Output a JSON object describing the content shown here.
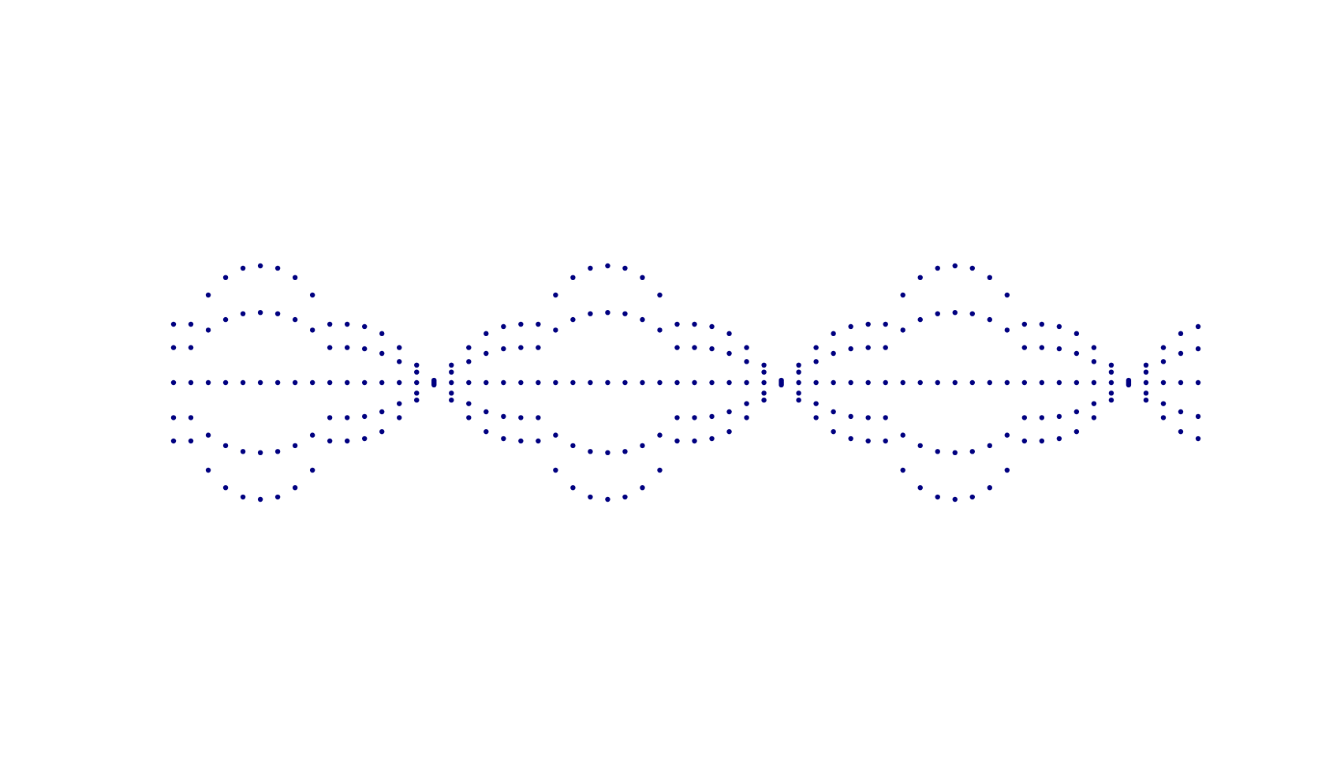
{
  "chart_data": {
    "type": "scatter",
    "x": [
      0.25,
      0.3,
      0.35,
      0.4,
      0.45,
      0.5,
      0.55,
      0.6,
      0.65,
      0.7,
      0.75,
      0.8,
      0.85,
      0.9,
      0.95,
      1,
      1.05,
      1.1,
      1.15,
      1.2,
      1.25,
      1.3,
      1.35,
      1.4,
      1.45,
      1.5,
      1.55,
      1.6,
      1.65,
      1.7,
      1.75,
      1.8,
      1.85,
      1.9,
      1.95,
      2,
      2.05,
      2.1,
      2.15,
      2.2,
      2.25,
      2.3,
      2.35,
      2.4,
      2.45,
      2.5,
      2.55,
      2.6,
      2.65,
      2.7,
      2.75,
      2.8,
      2.85,
      2.9,
      2.95,
      3,
      3.05,
      3.1,
      3.15,
      3.2
    ],
    "series": [
      {
        "color": "#000080",
        "values": [
          0.5,
          0.5,
          0.75,
          0.9,
          0.98,
          1,
          0.98,
          0.9,
          0.75,
          0.5,
          0.5,
          0.48,
          0.42,
          0.3,
          0.15,
          0.02,
          0.15,
          0.3,
          0.42,
          0.48,
          0.5,
          0.5,
          0.75,
          0.9,
          0.98,
          1,
          0.98,
          0.9,
          0.75,
          0.5,
          0.5,
          0.48,
          0.42,
          0.3,
          0.15,
          0.02,
          0.15,
          0.3,
          0.42,
          0.48,
          0.5,
          0.5,
          0.75,
          0.9,
          0.98,
          1,
          0.98,
          0.9,
          0.75,
          0.5,
          0.5,
          0.48,
          0.42,
          0.3,
          0.15,
          0.02,
          0.15,
          0.3,
          0.42,
          0.48
        ]
      },
      {
        "color": "#000080",
        "values": [
          0.3,
          0.3,
          0.45,
          0.54,
          0.59,
          0.6,
          0.59,
          0.54,
          0.45,
          0.3,
          0.3,
          0.29,
          0.25,
          0.18,
          0.09,
          0.01,
          0.09,
          0.18,
          0.25,
          0.29,
          0.3,
          0.3,
          0.45,
          0.54,
          0.59,
          0.6,
          0.59,
          0.54,
          0.45,
          0.3,
          0.3,
          0.29,
          0.25,
          0.18,
          0.09,
          0.01,
          0.09,
          0.18,
          0.25,
          0.29,
          0.3,
          0.3,
          0.45,
          0.54,
          0.59,
          0.6,
          0.59,
          0.54,
          0.45,
          0.3,
          0.3,
          0.29,
          0.25,
          0.18,
          0.09,
          0.01,
          0.09,
          0.18,
          0.25,
          0.29
        ]
      },
      {
        "color": "#000080",
        "values": [
          0,
          0,
          0,
          0,
          0,
          0,
          0,
          0,
          0,
          0,
          0,
          0,
          0,
          0,
          0,
          0,
          0,
          0,
          0,
          0,
          0,
          0,
          0,
          0,
          0,
          0,
          0,
          0,
          0,
          0,
          0,
          0,
          0,
          0,
          0,
          0,
          0,
          0,
          0,
          0,
          0,
          0,
          0,
          0,
          0,
          0,
          0,
          0,
          0,
          0,
          0,
          0,
          0,
          0,
          0,
          0,
          0,
          0,
          0,
          0
        ]
      },
      {
        "color": "#000080",
        "values": [
          -0.3,
          -0.3,
          -0.45,
          -0.54,
          -0.59,
          -0.6,
          -0.59,
          -0.54,
          -0.45,
          -0.3,
          -0.3,
          -0.29,
          -0.25,
          -0.18,
          -0.09,
          -0.01,
          -0.09,
          -0.18,
          -0.25,
          -0.29,
          -0.3,
          -0.3,
          -0.45,
          -0.54,
          -0.59,
          -0.6,
          -0.59,
          -0.54,
          -0.45,
          -0.3,
          -0.3,
          -0.29,
          -0.25,
          -0.18,
          -0.09,
          -0.01,
          -0.09,
          -0.18,
          -0.25,
          -0.29,
          -0.3,
          -0.3,
          -0.45,
          -0.54,
          -0.59,
          -0.6,
          -0.59,
          -0.54,
          -0.45,
          -0.3,
          -0.3,
          -0.29,
          -0.25,
          -0.18,
          -0.09,
          -0.01,
          -0.09,
          -0.18,
          -0.25,
          -0.29
        ]
      },
      {
        "color": "#000080",
        "values": [
          -0.5,
          -0.5,
          -0.75,
          -0.9,
          -0.98,
          -1,
          -0.98,
          -0.9,
          -0.75,
          -0.5,
          -0.5,
          -0.48,
          -0.42,
          -0.3,
          -0.15,
          -0.02,
          -0.15,
          -0.3,
          -0.42,
          -0.48,
          -0.5,
          -0.5,
          -0.75,
          -0.9,
          -0.98,
          -1,
          -0.98,
          -0.9,
          -0.75,
          -0.5,
          -0.5,
          -0.48,
          -0.42,
          -0.3,
          -0.15,
          -0.02,
          -0.15,
          -0.3,
          -0.42,
          -0.48,
          -0.5,
          -0.5,
          -0.75,
          -0.9,
          -0.98,
          -1,
          -0.98,
          -0.9,
          -0.75,
          -0.5,
          -0.5,
          -0.48,
          -0.42,
          -0.3,
          -0.15,
          -0.02,
          -0.15,
          -0.3,
          -0.42,
          -0.48
        ]
      }
    ],
    "xlim": [
      0.25,
      3.2
    ],
    "ylim": [
      -1,
      1
    ]
  }
}
